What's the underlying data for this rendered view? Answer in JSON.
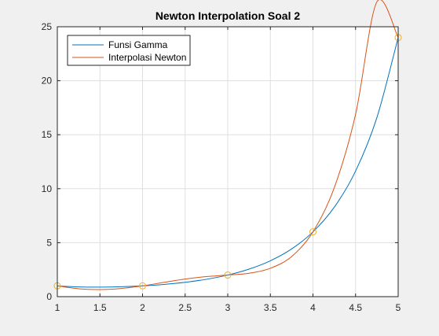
{
  "chart_data": {
    "type": "line",
    "title": "Newton Interpolation Soal 2",
    "xlabel": "",
    "ylabel": "",
    "xlim": [
      1,
      5
    ],
    "ylim": [
      0,
      25
    ],
    "x_ticks": [
      "1",
      "1.5",
      "2",
      "2.5",
      "3",
      "3.5",
      "4",
      "4.5",
      "5"
    ],
    "y_ticks": [
      "0",
      "5",
      "10",
      "15",
      "20",
      "25"
    ],
    "grid": true,
    "legend_position": "top-left",
    "series": [
      {
        "name": "Funsi Gamma",
        "color": "#0072BD",
        "x": [
          1,
          1.25,
          1.5,
          1.75,
          2,
          2.25,
          2.5,
          2.75,
          3,
          3.25,
          3.5,
          3.75,
          4,
          4.25,
          4.5,
          4.75,
          5
        ],
        "y": [
          1,
          0.906,
          0.886,
          0.919,
          1,
          1.133,
          1.329,
          1.608,
          2,
          2.549,
          3.323,
          4.423,
          6,
          8.285,
          11.632,
          16.578,
          24
        ]
      },
      {
        "name": "Interpolasi Newton",
        "color": "#D95319",
        "x": [
          1,
          1.25,
          1.5,
          1.75,
          2,
          2.25,
          2.5,
          2.75,
          3,
          3.25,
          3.5,
          3.75,
          4,
          4.25,
          4.5,
          4.75,
          5
        ],
        "y": [
          1,
          0.73,
          0.66,
          0.76,
          1,
          1.32,
          1.63,
          1.86,
          2,
          2.17,
          2.63,
          3.72,
          6,
          10.09,
          16.88,
          27.3,
          24
        ]
      }
    ],
    "markers": {
      "color": "#EDB120",
      "x": [
        1,
        2,
        3,
        4,
        5
      ],
      "y": [
        1,
        1,
        2,
        6,
        24
      ]
    }
  }
}
